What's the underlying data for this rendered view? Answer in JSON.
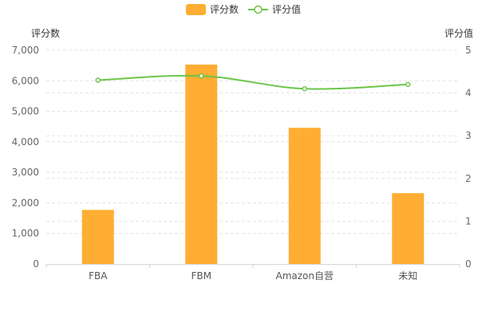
{
  "chart_data": {
    "type": "bar",
    "categories": [
      "FBA",
      "FBM",
      "Amazon自营",
      "未知"
    ],
    "series": [
      {
        "name": "评分数",
        "type": "bar",
        "axis": "left",
        "color": "#ffad33",
        "values": [
          1770,
          6530,
          4460,
          2320
        ]
      },
      {
        "name": "评分值",
        "type": "line",
        "axis": "right",
        "color": "#6cc54a",
        "values": [
          4.3,
          4.4,
          4.1,
          4.2
        ]
      }
    ],
    "ylabel_left": "评分数",
    "ylabel_right": "评分值",
    "ylim_left": [
      0,
      7000
    ],
    "ylim_right": [
      0,
      5
    ],
    "yticks_left": [
      "0",
      "1,000",
      "2,000",
      "3,000",
      "4,000",
      "5,000",
      "6,000",
      "7,000"
    ],
    "yticks_right": [
      "0",
      "1",
      "2",
      "3",
      "4",
      "5"
    ],
    "grid": "dashed horizontal",
    "legend_position": "top-center"
  }
}
